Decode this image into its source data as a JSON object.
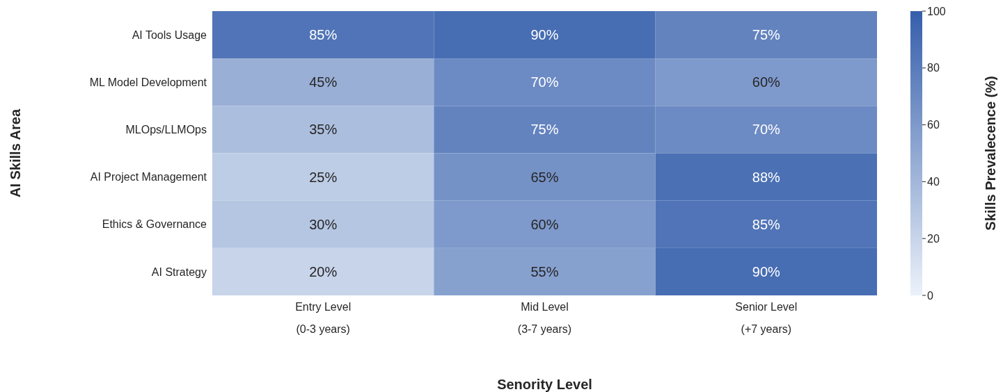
{
  "chart_data": {
    "type": "heatmap",
    "categories": [
      "Entry Level\n(0-3 years)",
      "Mid Level\n(3-7 years)",
      "Senior Level\n(+7 years)"
    ],
    "y_categories": [
      "AI Tools Usage",
      "ML Model Development",
      "MLOps/LLMOps",
      "AI Project Management",
      "Ethics & Governance",
      "AI Strategy"
    ],
    "cells": [
      [
        85,
        90,
        75
      ],
      [
        45,
        70,
        60
      ],
      [
        35,
        75,
        70
      ],
      [
        25,
        65,
        88
      ],
      [
        30,
        60,
        85
      ],
      [
        20,
        55,
        90
      ]
    ],
    "cell_labels": [
      [
        "85%",
        "90%",
        "75%"
      ],
      [
        "45%",
        "70%",
        "60%"
      ],
      [
        "35%",
        "75%",
        "70%"
      ],
      [
        "25%",
        "65%",
        "88%"
      ],
      [
        "30%",
        "60%",
        "85%"
      ],
      [
        "20%",
        "55%",
        "90%"
      ]
    ],
    "xlabel": "Senority Level",
    "ylabel": "AI Skills Area",
    "clabel": "Skills Prevalecence (%)",
    "clim": [
      0,
      100
    ],
    "cticks": [
      0,
      20,
      40,
      60,
      80,
      100
    ]
  }
}
